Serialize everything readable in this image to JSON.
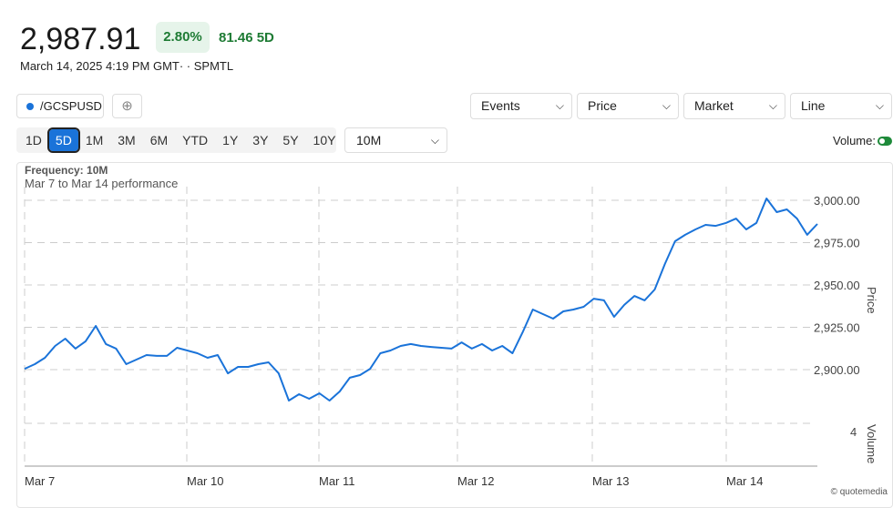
{
  "quote": {
    "price": "2,987.91",
    "change_pct": "2.80%",
    "change_abs": "81.46 5D",
    "timestamp": "March 14, 2025 4:19 PM GMT· · SPMTL",
    "up_color": "#1e7b34"
  },
  "symbol": {
    "label": "/GCSPUSD",
    "color": "#1a73d9"
  },
  "add_icon": "plus-circle-icon",
  "dropdowns": {
    "events": "Events",
    "price": "Price",
    "market": "Market",
    "line": "Line"
  },
  "ranges": [
    "1D",
    "5D",
    "1M",
    "3M",
    "6M",
    "YTD",
    "1Y",
    "3Y",
    "5Y",
    "10Y"
  ],
  "active_range": "5D",
  "frequency_select": "10M",
  "volume": {
    "label": "Volume:",
    "enabled": true
  },
  "chart_header": {
    "frequency": "Frequency: 10M",
    "performance": "Mar 7 to Mar 14 performance"
  },
  "footer": "© quotemedia",
  "chart_data": {
    "type": "line",
    "series": [
      {
        "color": "#1a73d9",
        "values": [
          2900.5,
          2903.2,
          2907.0,
          2914.0,
          2918.3,
          2912.4,
          2916.7,
          2925.8,
          2915.1,
          2912.4,
          2903.2,
          2905.9,
          2908.6,
          2908.1,
          2908.1,
          2912.9,
          2911.3,
          2909.7,
          2907.0,
          2908.6,
          2897.8,
          2901.6,
          2901.6,
          2903.2,
          2904.3,
          2897.8,
          2881.7,
          2885.5,
          2882.8,
          2886.0,
          2881.7,
          2887.1,
          2895.2,
          2896.8,
          2900.5,
          2909.7,
          2911.3,
          2914.0,
          2915.1,
          2914.0,
          2913.4,
          2912.9,
          2912.4,
          2916.1,
          2912.4,
          2915.1,
          2911.3,
          2914.0,
          2909.7,
          2922.0,
          2935.5,
          2932.8,
          2930.1,
          2934.4,
          2935.5,
          2937.1,
          2941.9,
          2940.9,
          2931.2,
          2938.2,
          2943.5,
          2940.9,
          2947.3,
          2962.4,
          2975.8,
          2979.6,
          2982.8,
          2985.5,
          2984.9,
          2986.6,
          2989.2,
          2982.8,
          2986.6,
          3001.1,
          2993.0,
          2994.6,
          2989.2,
          2979.6,
          2986.0
        ]
      }
    ],
    "x_ticks": [
      "Mar 7",
      "Mar 10",
      "Mar 11",
      "Mar 12",
      "Mar 13",
      "Mar 14"
    ],
    "y_ticks": [
      2900,
      2925,
      2950,
      2975,
      3000
    ],
    "y_tick_labels": [
      "2,900.00",
      "2,925.00",
      "2,950.00",
      "2,975.00",
      "3,000.00"
    ],
    "ylabel": "Price",
    "volume_label": "Volume",
    "volume_tick": "4",
    "grid": true
  }
}
